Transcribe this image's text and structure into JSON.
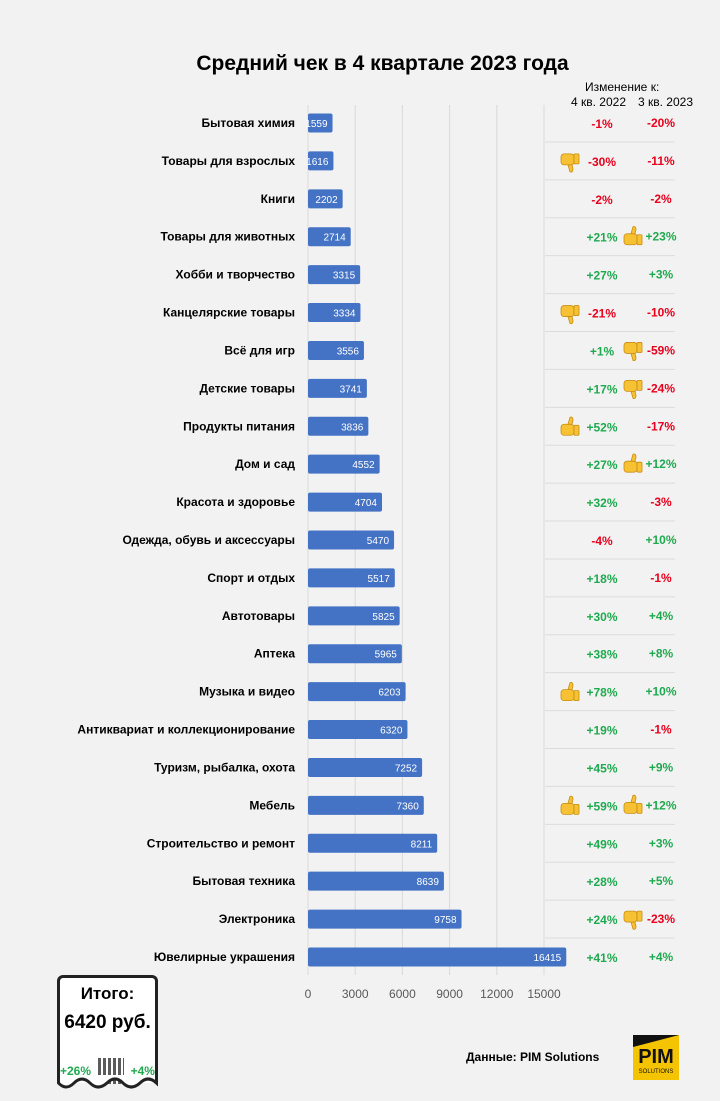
{
  "chart_data": {
    "type": "bar",
    "orientation": "horizontal",
    "title": "Средний чек в 4 квартале 2023 года",
    "categories": [
      "Бытовая химия",
      "Товары для взрослых",
      "Книги",
      "Товары для животных",
      "Хобби и творчество",
      "Канцелярские товары",
      "Всё для игр",
      "Детские товары",
      "Продукты питания",
      "Дом и сад",
      "Красота и здоровье",
      "Одежда, обувь и аксессуары",
      "Спорт и отдых",
      "Автотовары",
      "Аптека",
      "Музыка и видео",
      "Антиквариат и коллекционирование",
      "Туризм, рыбалка, охота",
      "Мебель",
      "Строительство и ремонт",
      "Бытовая техника",
      "Электроника",
      "Ювелирные украшения"
    ],
    "values": [
      1559,
      1616,
      2202,
      2714,
      3315,
      3334,
      3556,
      3741,
      3836,
      4552,
      4704,
      5470,
      5517,
      5825,
      5965,
      6203,
      6320,
      7252,
      7360,
      8211,
      8639,
      9758,
      16415
    ],
    "xlim": [
      0,
      16500
    ],
    "xticks": [
      "0",
      "3000",
      "6000",
      "9000",
      "12000",
      "15000"
    ],
    "bar_color": "#4472c4",
    "grid": true,
    "change_header": "Изменение к:",
    "change_columns": [
      "4 кв. 2022",
      "3 кв. 2023"
    ],
    "change_q4_2022": [
      "-1%",
      "-30%",
      "-2%",
      "+21%",
      "+27%",
      "-21%",
      "+1%",
      "+17%",
      "+52%",
      "+27%",
      "+32%",
      "-4%",
      "+18%",
      "+30%",
      "+38%",
      "+78%",
      "+19%",
      "+45%",
      "+59%",
      "+49%",
      "+28%",
      "+24%",
      "+41%"
    ],
    "change_q3_2023": [
      "-20%",
      "-11%",
      "-2%",
      "+23%",
      "+3%",
      "-10%",
      "-59%",
      "-24%",
      "-17%",
      "+12%",
      "-3%",
      "+10%",
      "-1%",
      "+4%",
      "+8%",
      "+10%",
      "-1%",
      "+9%",
      "+12%",
      "+3%",
      "+5%",
      "-23%",
      "+4%"
    ],
    "icons_q4_2022": [
      "",
      "thumbs-down",
      "",
      "",
      "",
      "thumbs-down",
      "",
      "",
      "thumbs-up",
      "",
      "",
      "",
      "",
      "",
      "",
      "thumbs-up",
      "",
      "",
      "thumbs-up",
      "",
      "",
      "",
      ""
    ],
    "icons_q3_2023": [
      "",
      "",
      "",
      "thumbs-up",
      "",
      "",
      "thumbs-down",
      "thumbs-down",
      "",
      "thumbs-up",
      "",
      "",
      "",
      "",
      "",
      "",
      "",
      "",
      "thumbs-up",
      "",
      "",
      "thumbs-down",
      ""
    ],
    "positive_color": "#1faa4f",
    "negative_color": "#e8001c"
  },
  "summary": {
    "label": "Итого:",
    "value": "6420 руб.",
    "change_q4_2022": "+26%",
    "change_q3_2023": "+4%"
  },
  "source": "Данные: PIM Solutions",
  "logo": {
    "main": "PIM",
    "sub": "SOLUTIONS"
  }
}
